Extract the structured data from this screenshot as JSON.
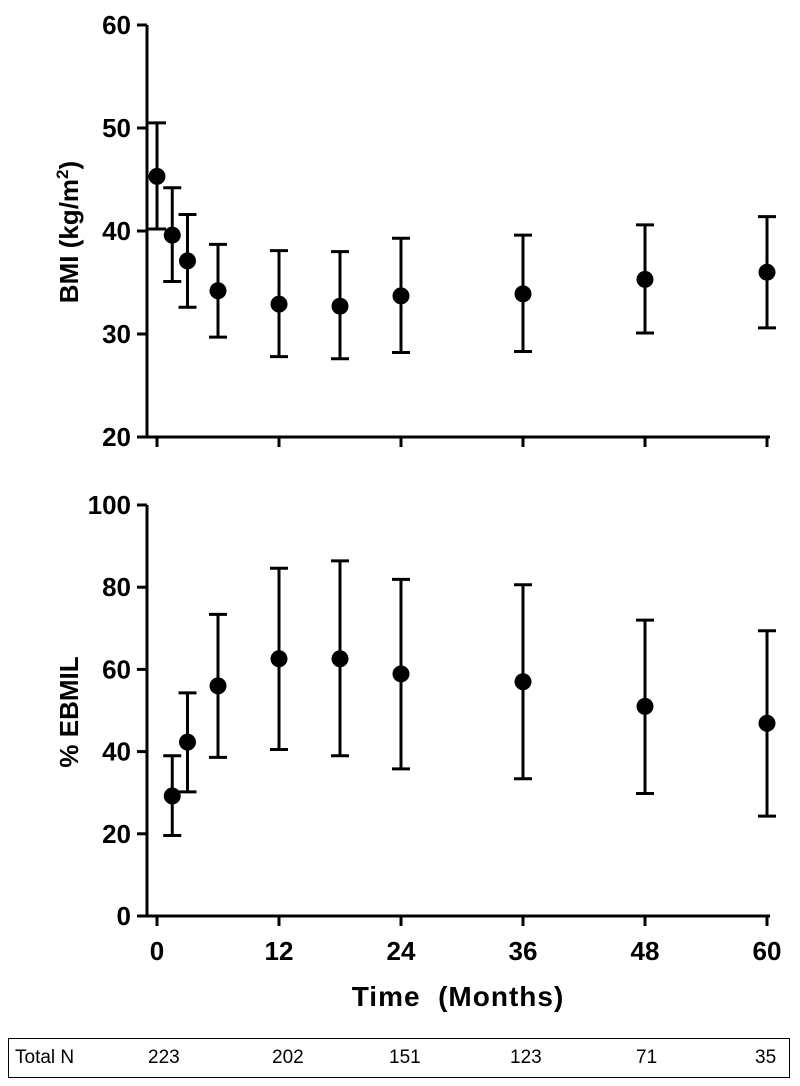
{
  "chart_data": [
    {
      "type": "scatter",
      "title": "",
      "ylabel": "BMI (kg/m²)",
      "ylabel_main": "BMI (kg/m",
      "ylabel_sup": "2",
      "ylabel_close": ")",
      "ylim": [
        20,
        60
      ],
      "yticks": [
        20,
        30,
        40,
        50,
        60
      ],
      "xlim": [
        0,
        60
      ],
      "xticks": [
        0,
        12,
        24,
        36,
        48,
        60
      ],
      "grid": false,
      "error_bars": true,
      "series": [
        {
          "x": [
            0,
            1.5,
            3,
            6,
            12,
            18,
            24,
            36,
            48,
            60
          ],
          "y": [
            45.3,
            39.6,
            37.1,
            34.2,
            32.9,
            32.7,
            33.7,
            33.9,
            35.3,
            36.0
          ],
          "err_low": [
            40.2,
            35.1,
            32.6,
            29.7,
            27.8,
            27.6,
            28.2,
            28.3,
            30.1,
            30.6
          ],
          "err_high": [
            50.5,
            44.2,
            41.6,
            38.7,
            38.1,
            38.0,
            39.3,
            39.6,
            40.6,
            41.4
          ]
        }
      ]
    },
    {
      "type": "scatter",
      "title": "",
      "ylabel": "% EBMIL",
      "ylim": [
        0,
        100
      ],
      "yticks": [
        0,
        20,
        40,
        60,
        80,
        100
      ],
      "xlim": [
        0,
        60
      ],
      "xticks": [
        0,
        12,
        24,
        36,
        48,
        60
      ],
      "xlabel": "Time  (Months)",
      "grid": false,
      "error_bars": true,
      "series": [
        {
          "x": [
            1.5,
            3,
            6,
            12,
            18,
            24,
            36,
            48,
            60
          ],
          "y": [
            29.2,
            42.3,
            56.0,
            62.6,
            62.6,
            58.9,
            57.0,
            51.0,
            46.9
          ],
          "err_low": [
            19.6,
            30.2,
            38.6,
            40.5,
            39.0,
            35.8,
            33.4,
            29.8,
            24.3
          ],
          "err_high": [
            39.0,
            54.3,
            73.4,
            84.6,
            86.4,
            81.9,
            80.6,
            72.0,
            69.4
          ]
        }
      ]
    }
  ],
  "total_n": {
    "label": "Total N",
    "values": [
      "223",
      "202",
      "151",
      "123",
      "71",
      "35"
    ]
  }
}
